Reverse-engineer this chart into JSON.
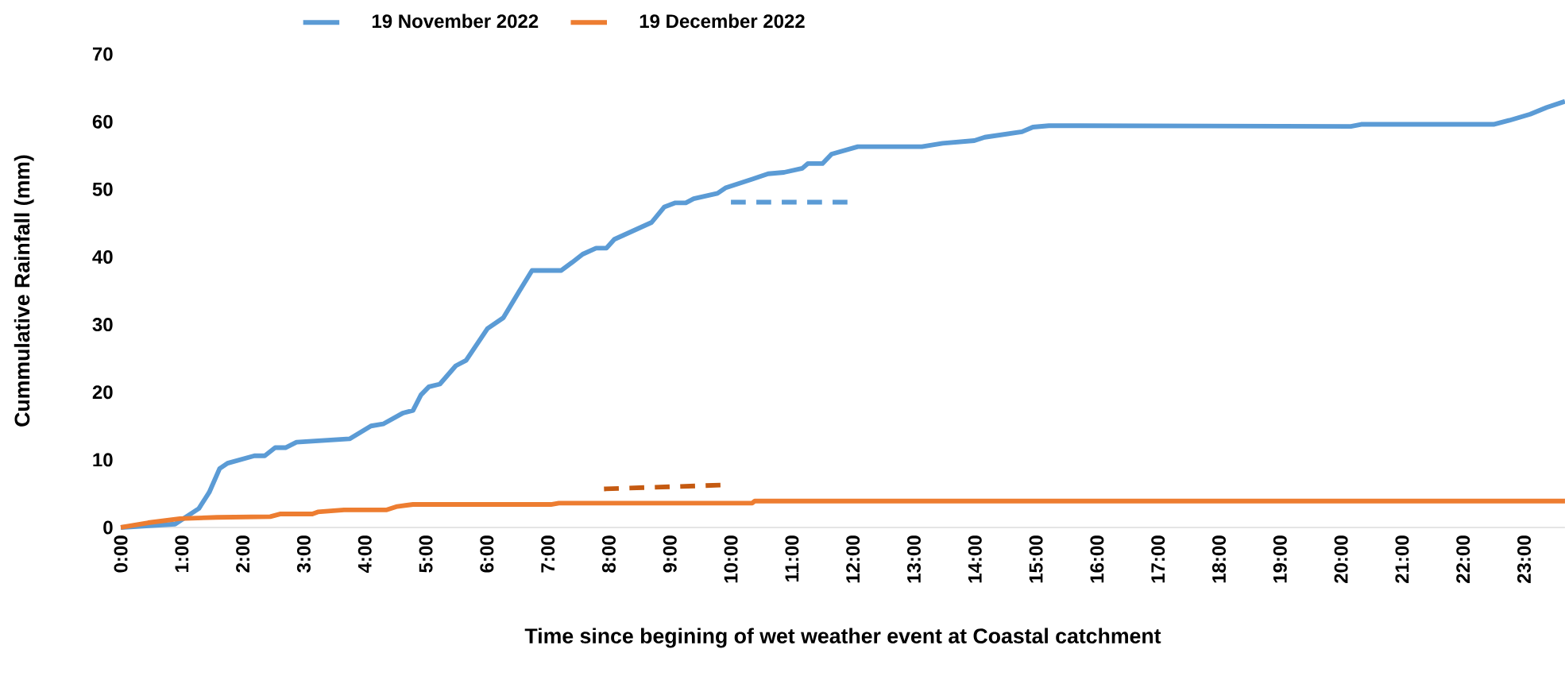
{
  "chart_data": {
    "type": "line",
    "xlabel": "Time since begining of wet weather event at Coastal catchment",
    "ylabel": "Cummulative Rainfall (mm)",
    "xlim": [
      0,
      23.67
    ],
    "ylim": [
      0,
      70
    ],
    "xticks": [
      {
        "value": 0,
        "label": "0:00"
      },
      {
        "value": 1,
        "label": "1:00"
      },
      {
        "value": 2,
        "label": "2:00"
      },
      {
        "value": 3,
        "label": "3:00"
      },
      {
        "value": 4,
        "label": "4:00"
      },
      {
        "value": 5,
        "label": "5:00"
      },
      {
        "value": 6,
        "label": "6:00"
      },
      {
        "value": 7,
        "label": "7:00"
      },
      {
        "value": 8,
        "label": "8:00"
      },
      {
        "value": 9,
        "label": "9:00"
      },
      {
        "value": 10,
        "label": "10:00"
      },
      {
        "value": 11,
        "label": "11:00"
      },
      {
        "value": 12,
        "label": "12:00"
      },
      {
        "value": 13,
        "label": "13:00"
      },
      {
        "value": 14,
        "label": "14:00"
      },
      {
        "value": 15,
        "label": "15:00"
      },
      {
        "value": 16,
        "label": "16:00"
      },
      {
        "value": 17,
        "label": "17:00"
      },
      {
        "value": 18,
        "label": "18:00"
      },
      {
        "value": 19,
        "label": "19:00"
      },
      {
        "value": 20,
        "label": "20:00"
      },
      {
        "value": 21,
        "label": "21:00"
      },
      {
        "value": 22,
        "label": "22:00"
      },
      {
        "value": 23,
        "label": "23:00"
      }
    ],
    "yticks": [
      0,
      10,
      20,
      30,
      40,
      50,
      60,
      70
    ],
    "legend": "top",
    "series": [
      {
        "name": "19 November 2022",
        "color": "#5b9bd5",
        "line_style": "solid",
        "x": [
          0,
          0.89,
          1.28,
          1.45,
          1.62,
          1.75,
          2.19,
          2.36,
          2.53,
          2.7,
          2.88,
          3.75,
          4.1,
          4.3,
          4.62,
          4.79,
          4.92,
          5.05,
          5.23,
          5.49,
          5.66,
          6.01,
          6.27,
          6.53,
          6.74,
          7.22,
          7.4,
          7.57,
          7.79,
          7.96,
          8.09,
          8.7,
          8.91,
          9.09,
          9.26,
          9.39,
          9.78,
          9.91,
          10.35,
          10.61,
          10.87,
          11.17,
          11.26,
          11.5,
          11.65,
          12.08,
          13.13,
          13.47,
          13.99,
          14.16,
          14.77,
          14.95,
          15.21,
          15.73,
          20.16,
          20.33,
          22.5,
          22.76,
          23.1,
          23.37,
          23.67
        ],
        "values": [
          0,
          0.5,
          2.8,
          5.2,
          8.7,
          9.5,
          10.6,
          10.6,
          11.8,
          11.8,
          12.6,
          13.1,
          15,
          15.3,
          16.9,
          17.3,
          19.6,
          20.8,
          21.2,
          23.9,
          24.7,
          29.4,
          31,
          34.9,
          38,
          38,
          39.2,
          40.4,
          41.3,
          41.3,
          42.6,
          45.1,
          47.4,
          48,
          48,
          48.6,
          49.4,
          50.2,
          51.5,
          52.3,
          52.5,
          53.1,
          53.8,
          53.8,
          55.2,
          56.3,
          56.3,
          56.8,
          57.2,
          57.7,
          58.5,
          59.2,
          59.4,
          59.4,
          59.3,
          59.6,
          59.6,
          60.2,
          61.1,
          62.1,
          63
        ]
      },
      {
        "name": "19 December 2022",
        "color": "#ed7d31",
        "line_style": "solid",
        "x": [
          0,
          0.45,
          0.97,
          1.58,
          2.45,
          2.62,
          3.14,
          3.23,
          3.66,
          4.36,
          4.53,
          4.79,
          7.05,
          7.18,
          10.35,
          10.39,
          23.67
        ],
        "values": [
          0,
          0.7,
          1.3,
          1.5,
          1.6,
          2,
          2,
          2.3,
          2.6,
          2.6,
          3.1,
          3.4,
          3.4,
          3.6,
          3.6,
          3.9,
          3.9
        ]
      },
      {
        "color": "#5b9bd5",
        "line_style": "dashed",
        "x": [
          10,
          12.04
        ],
        "values": [
          48.1,
          48.1
        ]
      },
      {
        "color": "#c55a11",
        "line_style": "dashed",
        "x": [
          7.92,
          9.96
        ],
        "values": [
          5.7,
          6.3
        ]
      }
    ]
  }
}
